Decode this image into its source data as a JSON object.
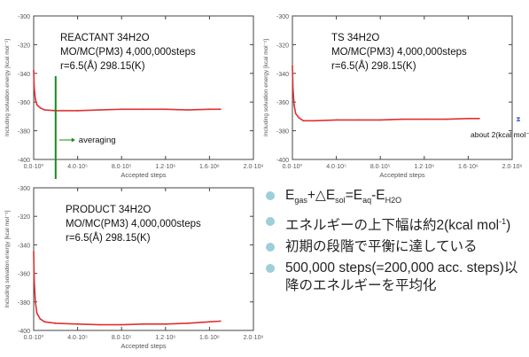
{
  "chart_data": [
    {
      "type": "line",
      "title": "REACTANT 34H2O",
      "annotations": [
        "MO/MC(PM3) 4,000,000steps",
        "r=6.5(Å) 298.15(K)",
        "averaging"
      ],
      "xlabel": "Accepted steps",
      "ylabel": "Including solvation energy [kcal mol⁻¹]",
      "xlim": [
        0,
        2000000
      ],
      "ylim": [
        -400,
        -300
      ],
      "x_tick_labels": [
        "0.0·10⁰",
        "4.0·10⁵",
        "8.0·10⁵",
        "1.2·10⁶",
        "1.6·10⁶",
        "2.0·10⁶"
      ],
      "y_tick_labels": [
        "-300",
        "-320",
        "-340",
        "-360",
        "-380",
        "-400"
      ],
      "averaging_start_x": 200000,
      "series": [
        {
          "x": [
            0,
            5000,
            15000,
            30000,
            60000,
            100000,
            200000,
            400000,
            600000,
            800000,
            1000000,
            1200000,
            1400000,
            1600000,
            1700000
          ],
          "y": [
            -338,
            -350,
            -358,
            -362,
            -364,
            -365.5,
            -366,
            -366,
            -365.5,
            -365,
            -365,
            -365,
            -365.5,
            -365,
            -365
          ]
        }
      ]
    },
    {
      "type": "line",
      "title": "TS 34H2O",
      "annotations": [
        "MO/MC(PM3) 4,000,000steps",
        "r=6.5(Å) 298.15(K)",
        "about 2(kcal mol⁻¹)"
      ],
      "xlabel": "Accepted steps",
      "ylabel": "Including solvation energy [kcal mol⁻¹]",
      "xlim": [
        0,
        2000000
      ],
      "ylim": [
        -400,
        -300
      ],
      "x_tick_labels": [
        "0.0·10⁰",
        "4.0·10⁵",
        "8.0·10⁵",
        "1.2·10⁶",
        "1.6·10⁶",
        "2.0·10⁶"
      ],
      "y_tick_labels": [
        "-300",
        "-320",
        "-340",
        "-360",
        "-380",
        "-400"
      ],
      "series": [
        {
          "x": [
            0,
            5000,
            15000,
            30000,
            60000,
            100000,
            200000,
            400000,
            600000,
            800000,
            1000000,
            1200000,
            1400000,
            1600000,
            1700000
          ],
          "y": [
            -335,
            -350,
            -362,
            -368,
            -371,
            -373,
            -373,
            -372.5,
            -372.5,
            -372.5,
            -372,
            -372,
            -372,
            -371.5,
            -371.5
          ]
        }
      ]
    },
    {
      "type": "line",
      "title": "PRODUCT 34H2O",
      "annotations": [
        "MO/MC(PM3) 4,000,000steps",
        "r=6.5(Å) 298.15(K)"
      ],
      "xlabel": "Accepted steps",
      "ylabel": "Including solvation energy [kcal mol⁻¹]",
      "xlim": [
        0,
        2000000
      ],
      "ylim": [
        -400,
        -300
      ],
      "x_tick_labels": [
        "0.0·10⁰",
        "4.0·10⁵",
        "8.0·10⁵",
        "1.2·10⁶",
        "1.6·10⁶",
        "2.0·10⁶"
      ],
      "y_tick_labels": [
        "-300",
        "-320",
        "-340",
        "-360",
        "-380",
        "-400"
      ],
      "series": [
        {
          "x": [
            0,
            5000,
            15000,
            30000,
            60000,
            100000,
            200000,
            400000,
            600000,
            800000,
            1000000,
            1200000,
            1400000,
            1600000,
            1700000
          ],
          "y": [
            -345,
            -365,
            -380,
            -388,
            -392,
            -394,
            -395,
            -395.5,
            -396,
            -396,
            -395.5,
            -395.5,
            -395,
            -394,
            -393.5
          ]
        }
      ]
    }
  ],
  "bullets": [
    "Egas+△Esol=Eaq-EH2O",
    "エネルギーの上下幅は約2(kcal mol-1)",
    "初期の段階で平衡に達している",
    "500,000 steps(=200,000 acc. steps)以降のエネルギーを平均化"
  ],
  "colors": {
    "series": "#e03030",
    "averaging_line": "#1a8a1a",
    "error_bar": "#2030c0",
    "bullet_dot": "#9ccfd8"
  }
}
